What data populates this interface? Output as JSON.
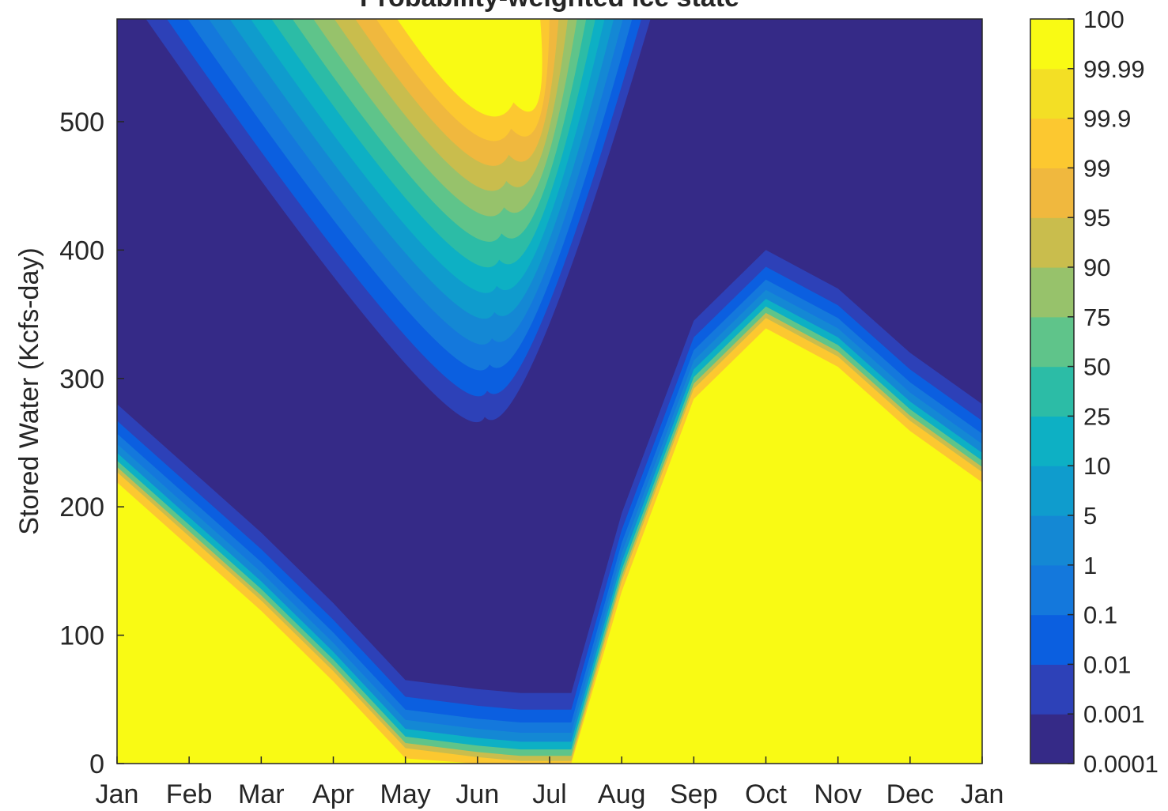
{
  "chart_data": {
    "type": "heatmap",
    "title": "Probability-weighted ice state",
    "xlabel": "",
    "ylabel": "Stored Water (Kcfs-day)",
    "x_tick_labels": [
      "Jan",
      "Feb",
      "Mar",
      "Apr",
      "May",
      "Jun",
      "Jul",
      "Aug",
      "Sep",
      "Oct",
      "Nov",
      "Dec",
      "Jan"
    ],
    "y_ticks": [
      0,
      100,
      200,
      300,
      400,
      500
    ],
    "ylim": [
      0,
      580
    ],
    "colorbar": {
      "tick_labels": [
        "0.0001",
        "0.001",
        "0.01",
        "0.1",
        "1",
        "5",
        "10",
        "25",
        "50",
        "75",
        "90",
        "95",
        "99",
        "99.9",
        "99.99",
        "100"
      ],
      "colors": [
        "#352a87",
        "#2d41b8",
        "#0b5fe0",
        "#1478dc",
        "#1488d4",
        "#0f9ccd",
        "#0db0c4",
        "#2cbca6",
        "#5fc48a",
        "#97c26b",
        "#c9bd4d",
        "#f0b83e",
        "#fcc830",
        "#f3df25",
        "#f9fa14"
      ]
    },
    "lower_boundary": [
      {
        "month": 0,
        "water": 225
      },
      {
        "month": 2,
        "water": 125
      },
      {
        "month": 3,
        "water": 70
      },
      {
        "month": 4,
        "water": 10
      },
      {
        "month": 5,
        "water": 3
      },
      {
        "month": 5.6,
        "water": 0
      },
      {
        "month": 6.3,
        "water": 0
      },
      {
        "month": 7,
        "water": 140
      },
      {
        "month": 8,
        "water": 290
      },
      {
        "month": 9,
        "water": 345
      },
      {
        "month": 10,
        "water": 315
      },
      {
        "month": 11,
        "water": 265
      },
      {
        "month": 12,
        "water": 225
      }
    ],
    "upper_lobe": {
      "min_month": 5.1,
      "min_water": 270,
      "left_edge": {
        "month": 0.4,
        "water": 580
      },
      "right_edge": {
        "month": 7.4,
        "water": 580
      },
      "inner_min_water": 300,
      "core_yellow_min_water": 515
    }
  }
}
